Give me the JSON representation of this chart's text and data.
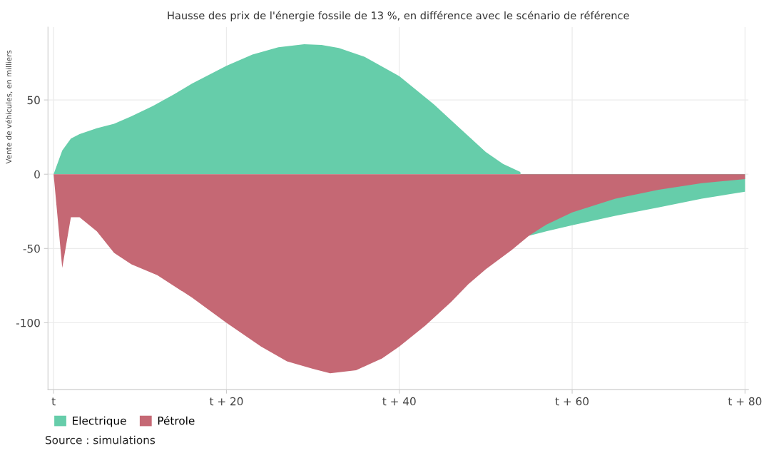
{
  "chart_data": {
    "type": "area",
    "title": "Hausse des prix de l'énergie fossile de 13 %, en différence avec le scénario de référence",
    "ylabel": "Vente de véhicules, en milliers",
    "series": [
      {
        "name": "Electrique",
        "color": "#66cdaa",
        "x": [
          0,
          1,
          2,
          3,
          5,
          7,
          9,
          11.5,
          14,
          16,
          18,
          20,
          23,
          26,
          29,
          31,
          33,
          36,
          40,
          44,
          47,
          50,
          52,
          54,
          55,
          57,
          60,
          65,
          70,
          75,
          80
        ],
        "values": [
          0,
          16,
          24,
          27,
          31,
          34,
          39,
          46,
          54,
          61,
          67,
          73,
          80.5,
          85.5,
          87.5,
          87,
          85,
          79,
          66,
          47,
          31,
          15,
          7,
          1.5,
          -41.5,
          -38.5,
          -34.3,
          -28,
          -22.4,
          -16.5,
          -11.8
        ]
      },
      {
        "name": "Pétrole",
        "color": "#c56874",
        "x": [
          0,
          1,
          2,
          3,
          5,
          7,
          9,
          12,
          16,
          20,
          24,
          27,
          30,
          32,
          35,
          38,
          40,
          43,
          46,
          48,
          50,
          53,
          55,
          57,
          60,
          65,
          70,
          75,
          80
        ],
        "values": [
          0,
          -63,
          -29,
          -29,
          -38.5,
          -53,
          -60.7,
          -68,
          -83,
          -100,
          -116,
          -126,
          -131,
          -134,
          -132,
          -124,
          -116,
          -102,
          -86,
          -74,
          -64,
          -51,
          -41.5,
          -34,
          -25.7,
          -16.5,
          -10.5,
          -6,
          -3.3
        ]
      }
    ],
    "xlim": [
      -0.65,
      80.4
    ],
    "ylim": [
      -145,
      99
    ],
    "xticks": [
      {
        "value": 0,
        "label": "t"
      },
      {
        "value": 20,
        "label": "t + 20"
      },
      {
        "value": 40,
        "label": "t + 40"
      },
      {
        "value": 60,
        "label": "t + 60"
      },
      {
        "value": 80,
        "label": "t + 80"
      }
    ],
    "yticks": [
      {
        "value": -100,
        "label": "-100"
      },
      {
        "value": -50,
        "label": "-50"
      },
      0,
      50
    ],
    "grid": true,
    "legend": "bottom left",
    "annotations": [
      "Source : simulations"
    ]
  }
}
